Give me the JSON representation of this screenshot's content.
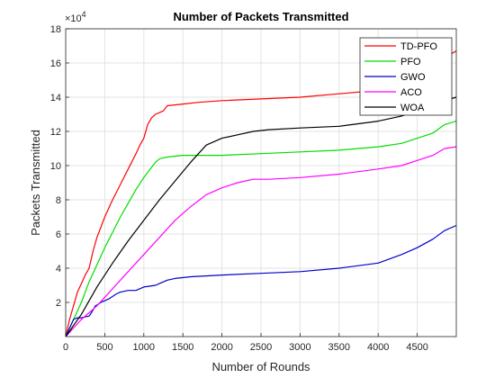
{
  "chart_data": {
    "type": "line",
    "title": "Number of Packets Transmitted",
    "xlabel": "Number of Rounds",
    "ylabel": "Packets Transmitted",
    "y_exponent_label": "×10",
    "y_exponent_power": "4",
    "xlim": [
      0,
      5000
    ],
    "ylim": [
      0,
      18
    ],
    "x_ticks": [
      "0",
      "500",
      "1000",
      "1500",
      "2000",
      "2500",
      "3000",
      "3500",
      "4000",
      "4500"
    ],
    "y_ticks": [
      "2",
      "4",
      "6",
      "8",
      "10",
      "12",
      "14",
      "16",
      "18"
    ],
    "grid": true,
    "legend_position": "top-right",
    "series": [
      {
        "name": "TD-PFO",
        "color": "#ff0000",
        "x": [
          0,
          50,
          100,
          150,
          200,
          250,
          300,
          350,
          400,
          450,
          500,
          600,
          700,
          800,
          900,
          950,
          1000,
          1050,
          1100,
          1150,
          1200,
          1250,
          1300,
          1500,
          1700,
          2000,
          2500,
          3000,
          3500,
          4000,
          4500,
          4800,
          5000
        ],
        "y": [
          0,
          1.0,
          1.8,
          2.6,
          3.1,
          3.6,
          4.0,
          5.0,
          5.8,
          6.4,
          7.0,
          8.0,
          8.9,
          9.8,
          10.7,
          11.2,
          11.6,
          12.4,
          12.8,
          13.0,
          13.1,
          13.2,
          13.5,
          13.6,
          13.7,
          13.8,
          13.9,
          14.0,
          14.2,
          14.4,
          15.0,
          16.2,
          16.7
        ]
      },
      {
        "name": "PFO",
        "color": "#00dd00",
        "x": [
          0,
          100,
          200,
          300,
          400,
          500,
          600,
          700,
          800,
          900,
          1000,
          1100,
          1150,
          1200,
          1300,
          1500,
          2000,
          2500,
          3000,
          3500,
          4000,
          4300,
          4500,
          4700,
          4850,
          5000
        ],
        "y": [
          0,
          1.0,
          2.0,
          3.2,
          4.2,
          5.2,
          6.1,
          7.0,
          7.8,
          8.6,
          9.3,
          9.9,
          10.2,
          10.4,
          10.5,
          10.6,
          10.6,
          10.7,
          10.8,
          10.9,
          11.1,
          11.3,
          11.6,
          11.9,
          12.4,
          12.6
        ]
      },
      {
        "name": "GWO",
        "color": "#0000cc",
        "x": [
          0,
          100,
          150,
          200,
          300,
          330,
          380,
          420,
          450,
          500,
          550,
          650,
          700,
          800,
          900,
          1000,
          1150,
          1200,
          1300,
          1400,
          1600,
          2000,
          2500,
          3000,
          3500,
          4000,
          4300,
          4500,
          4700,
          4850,
          5000
        ],
        "y": [
          0,
          1.0,
          1.1,
          1.1,
          1.2,
          1.4,
          1.8,
          1.9,
          2.0,
          2.1,
          2.2,
          2.5,
          2.6,
          2.7,
          2.7,
          2.9,
          3.0,
          3.1,
          3.3,
          3.4,
          3.5,
          3.6,
          3.7,
          3.8,
          4.0,
          4.3,
          4.8,
          5.2,
          5.7,
          6.2,
          6.5
        ]
      },
      {
        "name": "ACO",
        "color": "#ff00ff",
        "x": [
          0,
          200,
          400,
          600,
          800,
          1000,
          1200,
          1400,
          1600,
          1800,
          2000,
          2200,
          2400,
          2600,
          3000,
          3500,
          4000,
          4300,
          4500,
          4700,
          4850,
          5000
        ],
        "y": [
          0,
          1.0,
          1.8,
          2.8,
          3.8,
          4.8,
          5.8,
          6.8,
          7.6,
          8.3,
          8.7,
          9.0,
          9.2,
          9.2,
          9.3,
          9.5,
          9.8,
          10.0,
          10.3,
          10.6,
          11.0,
          11.1
        ]
      },
      {
        "name": "WOA",
        "color": "#000000",
        "x": [
          0,
          200,
          400,
          600,
          800,
          1000,
          1200,
          1400,
          1600,
          1800,
          2000,
          2200,
          2400,
          2600,
          3000,
          3500,
          4000,
          4300,
          4500,
          4700,
          4850,
          5000
        ],
        "y": [
          0,
          1.3,
          2.9,
          4.3,
          5.6,
          6.8,
          8.0,
          9.1,
          10.2,
          11.2,
          11.6,
          11.8,
          12.0,
          12.1,
          12.2,
          12.3,
          12.6,
          12.9,
          13.2,
          13.5,
          13.8,
          14.0
        ]
      }
    ]
  }
}
